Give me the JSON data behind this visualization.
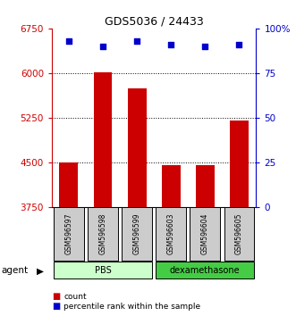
{
  "title": "GDS5036 / 24433",
  "samples": [
    "GSM596597",
    "GSM596598",
    "GSM596599",
    "GSM596603",
    "GSM596604",
    "GSM596605"
  ],
  "bar_values": [
    4500,
    6010,
    5750,
    4450,
    4450,
    5200
  ],
  "percentile_values": [
    93,
    90,
    93,
    91,
    90,
    91
  ],
  "ylim_left": [
    3750,
    6750
  ],
  "ylim_right": [
    0,
    100
  ],
  "yticks_left": [
    3750,
    4500,
    5250,
    6000,
    6750
  ],
  "yticks_right": [
    0,
    25,
    50,
    75,
    100
  ],
  "ytick_labels_right": [
    "0",
    "25",
    "50",
    "75",
    "100%"
  ],
  "bar_color": "#cc0000",
  "dot_color": "#0000cc",
  "agent_groups": [
    {
      "label": "PBS",
      "count": 3,
      "color": "#ccffcc",
      "edge_color": "#000000"
    },
    {
      "label": "dexamethasone",
      "count": 3,
      "color": "#44cc44",
      "edge_color": "#000000"
    }
  ],
  "agent_label": "agent",
  "legend_items": [
    {
      "label": "count",
      "color": "#cc0000"
    },
    {
      "label": "percentile rank within the sample",
      "color": "#0000cc"
    }
  ],
  "axis_left_color": "#cc0000",
  "axis_right_color": "#0000cc",
  "grid_yticks": [
    4500,
    5250,
    6000
  ],
  "sample_box_color": "#cccccc"
}
